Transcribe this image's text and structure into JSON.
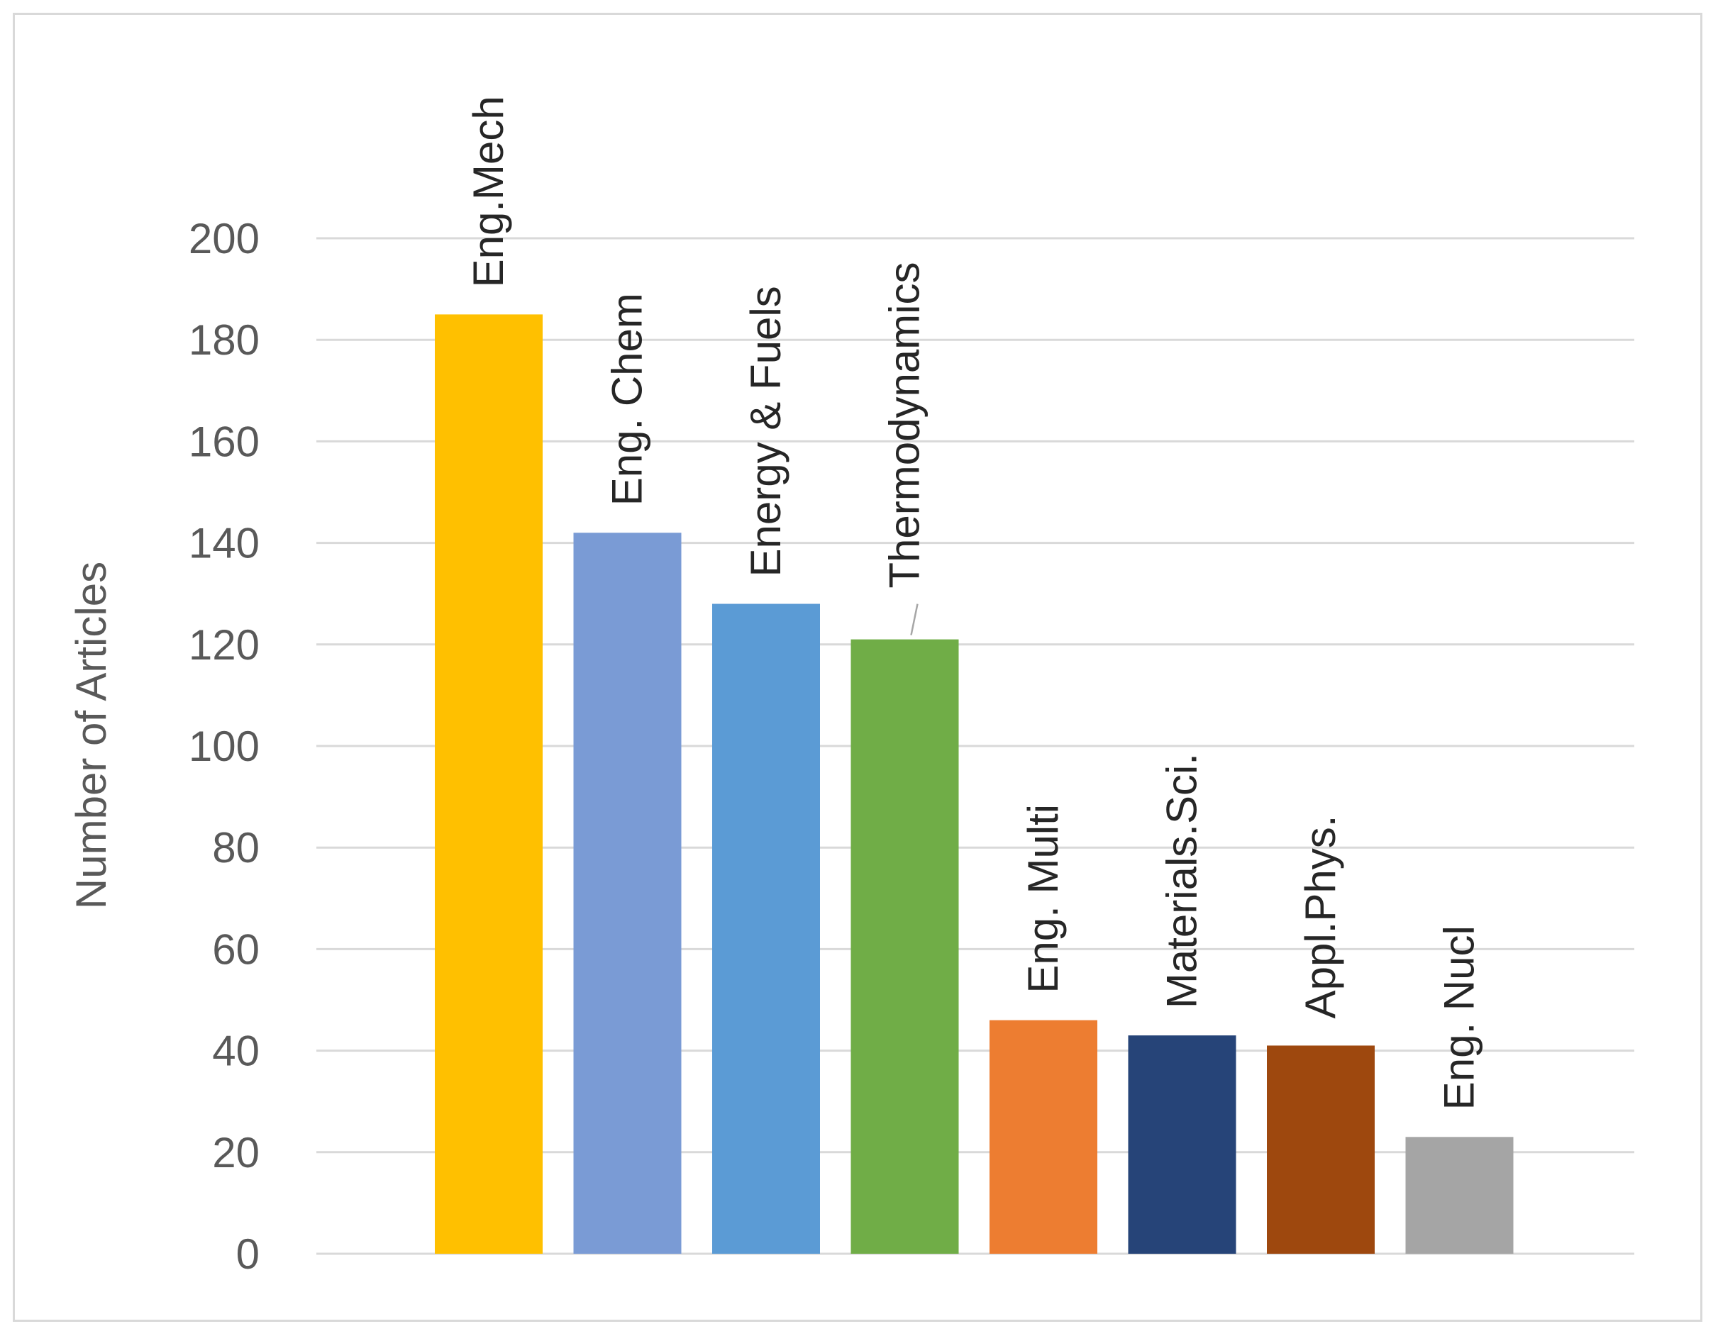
{
  "chart_data": {
    "type": "bar",
    "categories": [
      "Eng.Mech",
      "Eng. Chem",
      "Energy & Fuels",
      "Thermodynamics",
      "Eng. Multi",
      "Materials.Sci.",
      "Appl.Phys.",
      "Eng. Nucl"
    ],
    "values": [
      185,
      142,
      128,
      121,
      46,
      43,
      41,
      23
    ],
    "colors": [
      "#ffc000",
      "#7a9bd5",
      "#5b9bd5",
      "#70ad47",
      "#ed7d31",
      "#264478",
      "#9e480e",
      "#a5a5a5"
    ],
    "title": "",
    "xlabel": "",
    "ylabel": "Number of Articles",
    "ylim": [
      0,
      200
    ],
    "yticks": [
      "0",
      "20",
      "40",
      "60",
      "80",
      "100",
      "120",
      "140",
      "160",
      "180",
      "200"
    ],
    "grid": true,
    "legend": "none",
    "data_labels": "category names, rotated vertical above each bar"
  }
}
